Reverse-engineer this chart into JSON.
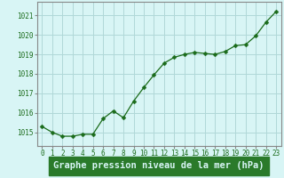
{
  "x": [
    0,
    1,
    2,
    3,
    4,
    5,
    6,
    7,
    8,
    9,
    10,
    11,
    12,
    13,
    14,
    15,
    16,
    17,
    18,
    19,
    20,
    21,
    22,
    23
  ],
  "y": [
    1015.3,
    1015.0,
    1014.8,
    1014.8,
    1014.9,
    1014.9,
    1015.7,
    1016.1,
    1015.75,
    1016.6,
    1017.3,
    1017.95,
    1018.55,
    1018.85,
    1019.0,
    1019.1,
    1019.05,
    1019.0,
    1019.15,
    1019.45,
    1019.5,
    1019.95,
    1020.65,
    1021.2
  ],
  "line_color": "#1a6b1a",
  "marker": "D",
  "marker_size": 2.5,
  "background_color": "#d8f5f5",
  "grid_color": "#b0d8d8",
  "xlabel": "Graphe pression niveau de la mer (hPa)",
  "xlabel_fontsize": 7.5,
  "ylim": [
    1014.3,
    1021.7
  ],
  "yticks": [
    1015,
    1016,
    1017,
    1018,
    1019,
    1020,
    1021
  ],
  "xticks": [
    0,
    1,
    2,
    3,
    4,
    5,
    6,
    7,
    8,
    9,
    10,
    11,
    12,
    13,
    14,
    15,
    16,
    17,
    18,
    19,
    20,
    21,
    22,
    23
  ],
  "tick_color": "#1a6b1a",
  "tick_fontsize": 5.5,
  "axis_color": "#888888",
  "xlabel_bg_color": "#2a7a2a",
  "xlabel_text_color": "#d8f5f5"
}
